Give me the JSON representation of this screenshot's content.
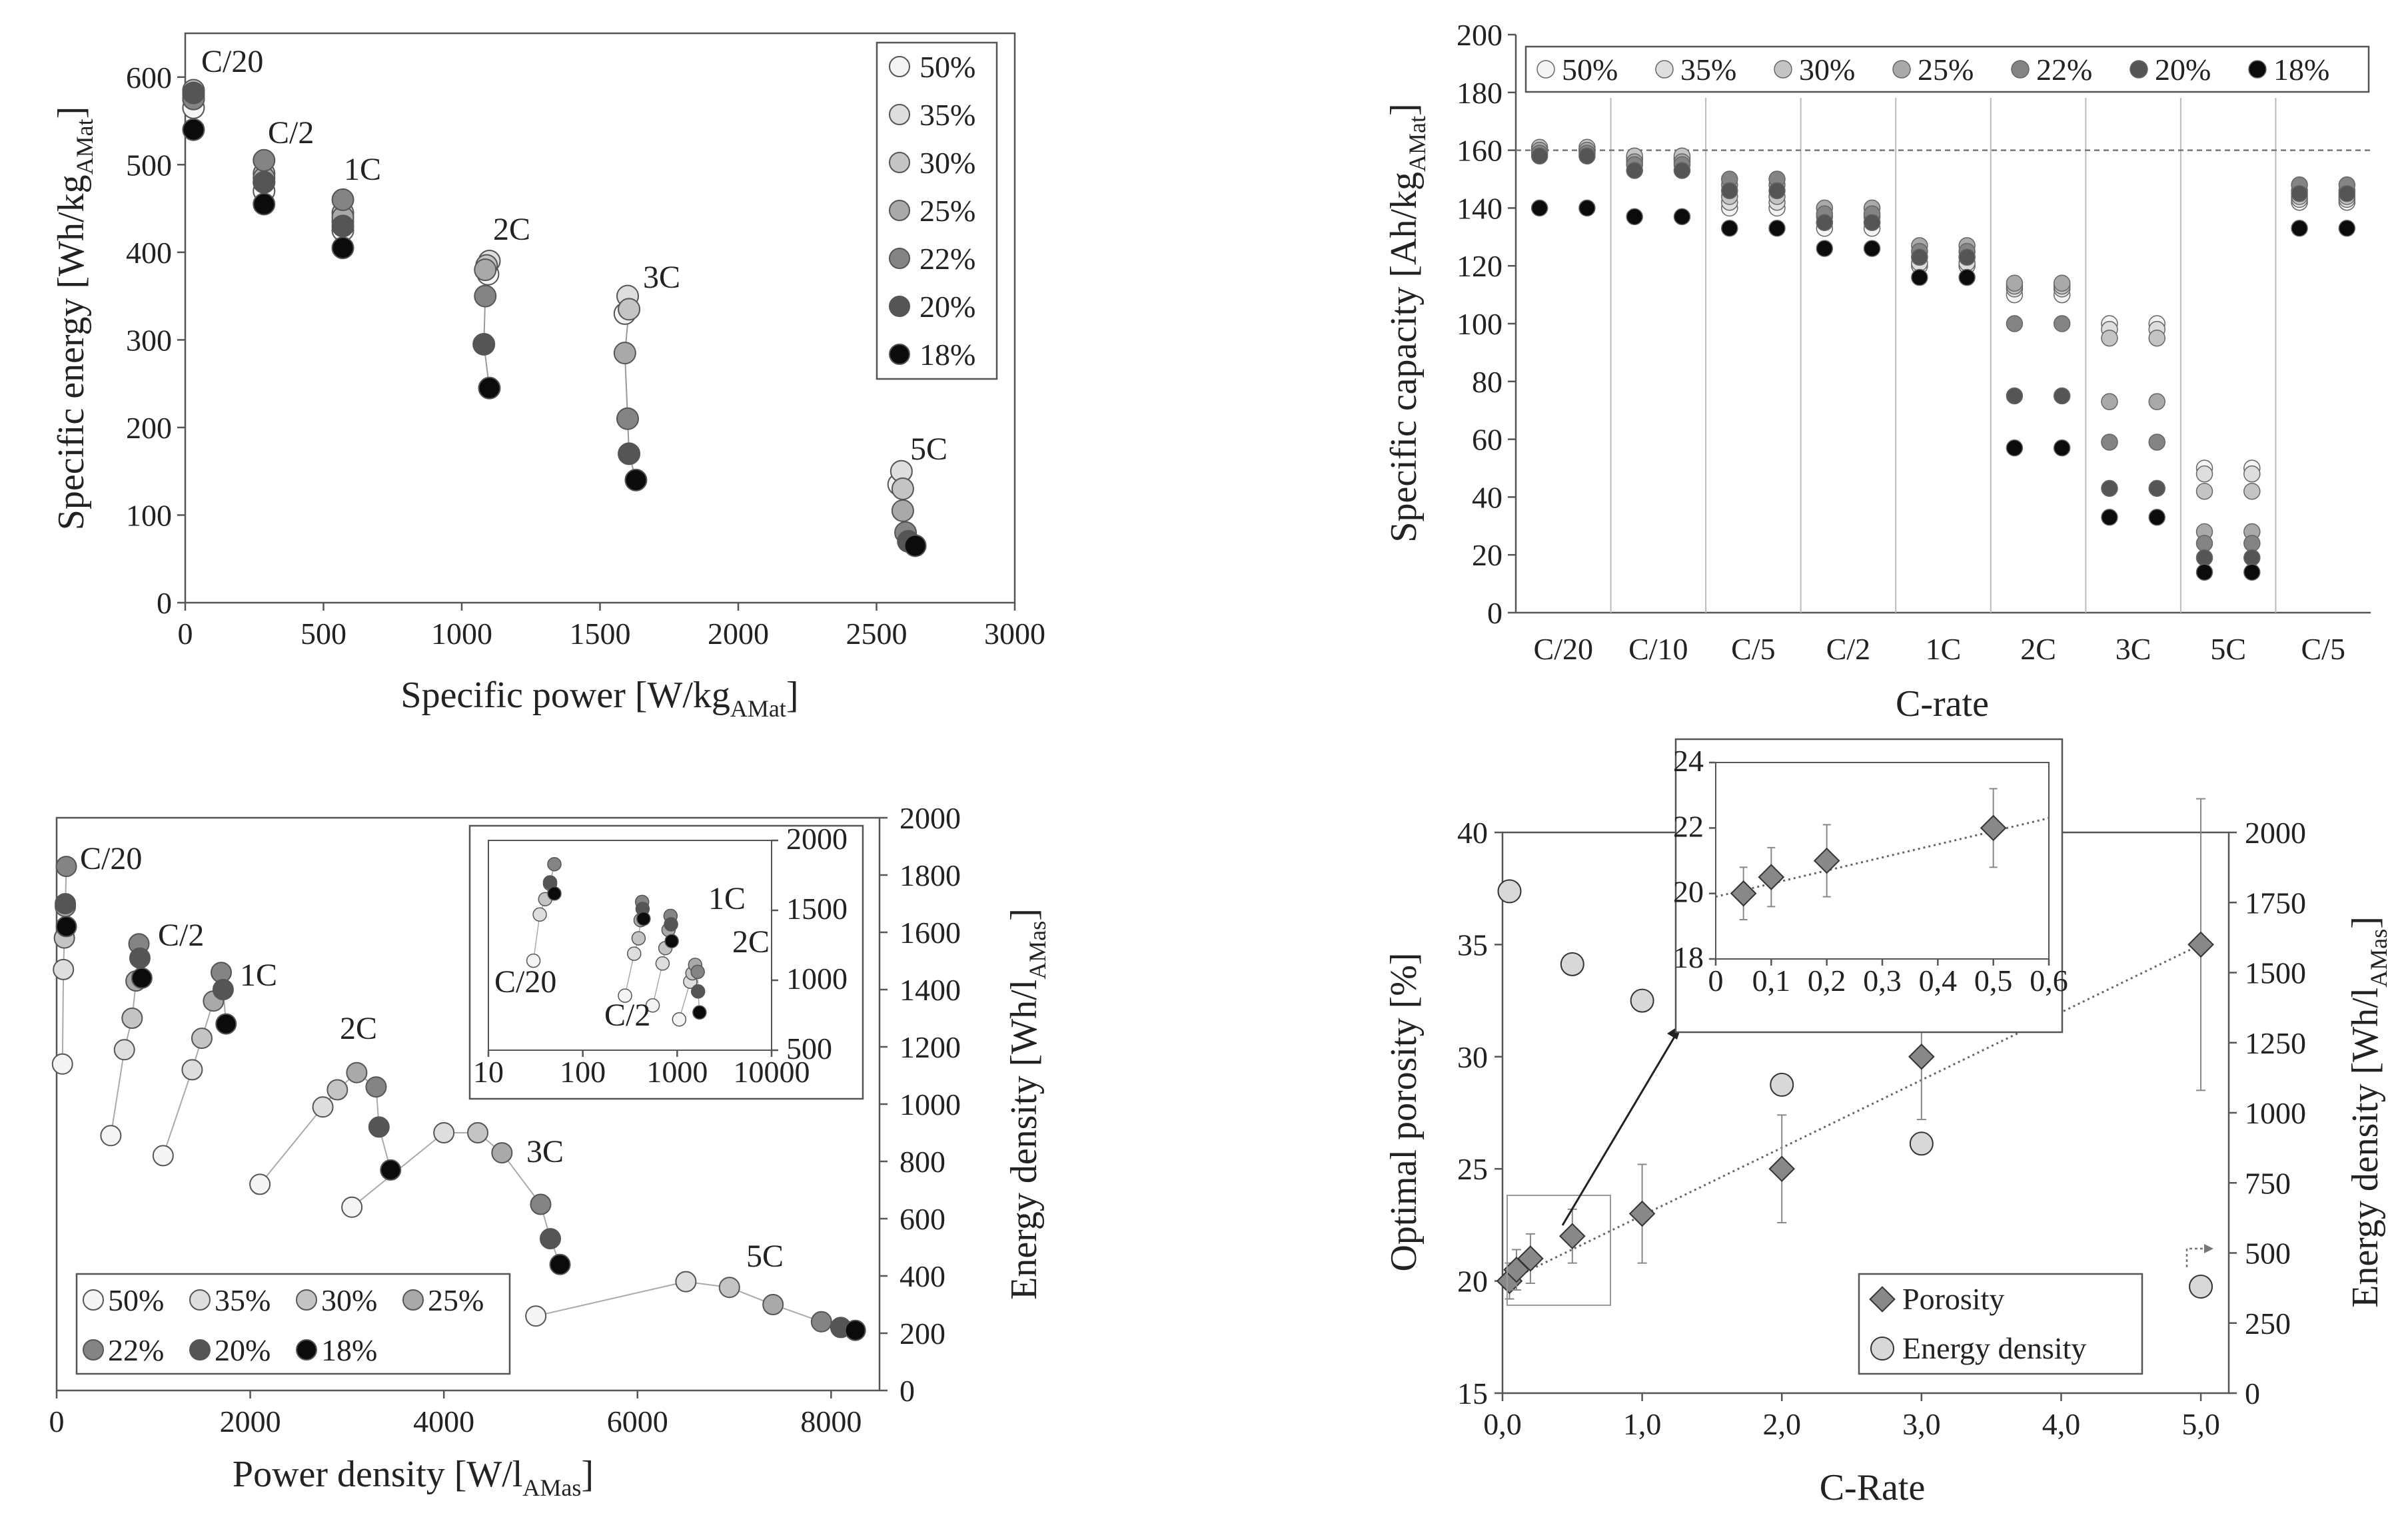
{
  "colors": {
    "s50": "#f4f4f4",
    "s35": "#dedede",
    "s30": "#c4c4c4",
    "s25": "#a9a9a9",
    "s22": "#848484",
    "s20": "#555555",
    "s18": "#0b0b0b",
    "axis": "#555555"
  },
  "chart_data": [
    {
      "type": "scatter",
      "panel": "top-left",
      "title": "",
      "xlabel": "Specific power [W/kg",
      "xlabel_sub": "AMat",
      "xlabel_end": "]",
      "ylabel": "Specific energy [Wh/kg",
      "ylabel_sub": "AMat",
      "ylabel_end": "]",
      "xlim": [
        0,
        3000
      ],
      "ylim": [
        0,
        650
      ],
      "xticks": [
        "0",
        "500",
        "1000",
        "1500",
        "2000",
        "2500",
        "3000"
      ],
      "yticks": [
        "0",
        "100",
        "200",
        "300",
        "400",
        "500",
        "600"
      ],
      "legend": [
        "50%",
        "35%",
        "30%",
        "25%",
        "22%",
        "20%",
        "18%"
      ],
      "legend_position": "top-right",
      "annotations": [
        "C/20",
        "C/2",
        "1C",
        "2C",
        "3C",
        "5C"
      ],
      "series": [
        {
          "name": "50%",
          "x": [
            30,
            285,
            570,
            1095,
            1590,
            2580
          ],
          "y": [
            565,
            470,
            425,
            375,
            330,
            135
          ]
        },
        {
          "name": "35%",
          "x": [
            30,
            285,
            570,
            1100,
            1600,
            2590
          ],
          "y": [
            575,
            480,
            435,
            390,
            350,
            150
          ]
        },
        {
          "name": "30%",
          "x": [
            30,
            285,
            570,
            1090,
            1605,
            2595
          ],
          "y": [
            585,
            490,
            445,
            385,
            335,
            130
          ]
        },
        {
          "name": "25%",
          "x": [
            30,
            285,
            570,
            1085,
            1590,
            2595
          ],
          "y": [
            580,
            485,
            440,
            380,
            285,
            105
          ]
        },
        {
          "name": "22%",
          "x": [
            30,
            285,
            570,
            1085,
            1600,
            2605
          ],
          "y": [
            575,
            505,
            460,
            350,
            210,
            80
          ]
        },
        {
          "name": "20%",
          "x": [
            30,
            285,
            570,
            1080,
            1605,
            2615
          ],
          "y": [
            582,
            480,
            430,
            295,
            170,
            70
          ]
        },
        {
          "name": "18%",
          "x": [
            30,
            285,
            570,
            1100,
            1630,
            2640
          ],
          "y": [
            540,
            455,
            405,
            245,
            140,
            65
          ]
        }
      ]
    },
    {
      "type": "scatter",
      "panel": "top-right",
      "title": "",
      "xlabel": "C-rate",
      "ylabel": "Specific capacity [Ah/kg",
      "ylabel_sub": "AMat",
      "ylabel_end": "]",
      "categories": [
        "C/20",
        "C/10",
        "C/5",
        "C/2",
        "1C",
        "2C",
        "3C",
        "5C",
        "C/5"
      ],
      "ylim": [
        0,
        200
      ],
      "yticks": [
        "0",
        "20",
        "40",
        "60",
        "80",
        "100",
        "120",
        "140",
        "160",
        "180",
        "200"
      ],
      "reference_line": 160,
      "legend": [
        "50%",
        "35%",
        "30%",
        "25%",
        "22%",
        "20%",
        "18%"
      ],
      "legend_position": "top",
      "series": [
        {
          "name": "50%",
          "values": [
            160,
            157,
            140,
            133,
            120,
            110,
            100,
            50,
            142
          ]
        },
        {
          "name": "35%",
          "values": [
            160,
            157,
            142,
            135,
            121,
            112,
            98,
            48,
            143
          ]
        },
        {
          "name": "30%",
          "values": [
            161,
            158,
            144,
            137,
            123,
            113,
            95,
            42,
            144
          ]
        },
        {
          "name": "25%",
          "values": [
            160,
            156,
            148,
            140,
            127,
            114,
            73,
            28,
            146
          ]
        },
        {
          "name": "22%",
          "values": [
            159,
            155,
            150,
            138,
            125,
            100,
            59,
            24,
            148
          ]
        },
        {
          "name": "20%",
          "values": [
            158,
            153,
            146,
            135,
            123,
            75,
            43,
            19,
            145
          ]
        },
        {
          "name": "18%",
          "values": [
            140,
            137,
            133,
            126,
            116,
            57,
            33,
            14,
            133
          ]
        }
      ]
    },
    {
      "type": "scatter",
      "panel": "bottom-left",
      "title": "",
      "xlabel": "Power density [W/l",
      "xlabel_sub": "AMas",
      "xlabel_end": "]",
      "ylabel": "Energy density [Wh/l",
      "ylabel_sub": "AMas",
      "ylabel_end": "]",
      "xlim": [
        0,
        8500
      ],
      "ylim": [
        0,
        2000
      ],
      "xticks": [
        "0",
        "2000",
        "4000",
        "6000",
        "8000"
      ],
      "yticks": [
        "0",
        "200",
        "400",
        "600",
        "800",
        "1000",
        "1200",
        "1400",
        "1600",
        "1800",
        "2000"
      ],
      "legend": [
        "50%",
        "35%",
        "30%",
        "25%",
        "22%",
        "20%",
        "18%"
      ],
      "legend_position": "bottom-left",
      "annotations": [
        "C/20",
        "C/2",
        "1C",
        "2C",
        "3C",
        "5C"
      ],
      "series": [
        {
          "name": "50%",
          "x": [
            60,
            560,
            1100,
            2100,
            3050,
            4950
          ],
          "y": [
            1140,
            890,
            820,
            720,
            640,
            260
          ]
        },
        {
          "name": "35%",
          "x": [
            70,
            700,
            1400,
            2750,
            4000,
            6500
          ],
          "y": [
            1470,
            1190,
            1120,
            990,
            900,
            380
          ]
        },
        {
          "name": "30%",
          "x": [
            80,
            780,
            1500,
            2900,
            4350,
            6950
          ],
          "y": [
            1580,
            1300,
            1230,
            1050,
            900,
            360
          ]
        },
        {
          "name": "25%",
          "x": [
            90,
            820,
            1620,
            3100,
            4600,
            7400
          ],
          "y": [
            1690,
            1430,
            1360,
            1110,
            830,
            300
          ]
        },
        {
          "name": "22%",
          "x": [
            100,
            850,
            1700,
            3300,
            5000,
            7900
          ],
          "y": [
            1830,
            1560,
            1460,
            1060,
            650,
            240
          ]
        },
        {
          "name": "20%",
          "x": [
            90,
            860,
            1720,
            3330,
            5100,
            8100
          ],
          "y": [
            1700,
            1510,
            1400,
            920,
            530,
            220
          ]
        },
        {
          "name": "18%",
          "x": [
            100,
            880,
            1750,
            3450,
            5200,
            8250
          ],
          "y": [
            1620,
            1440,
            1280,
            770,
            440,
            210
          ]
        }
      ],
      "inset": {
        "xscale": "log",
        "xlim": [
          10,
          10000
        ],
        "ylim": [
          500,
          2000
        ],
        "xticks": [
          "10",
          "100",
          "1000",
          "10000"
        ],
        "yticks": [
          "500",
          "1000",
          "1500",
          "2000"
        ],
        "annotations": [
          "C/20",
          "C/2",
          "1C",
          "2C"
        ]
      }
    },
    {
      "type": "scatter",
      "panel": "bottom-right",
      "title": "",
      "xlabel": "C-Rate",
      "ylabel": "Optimal porosity [%]",
      "ylabel2": "Energy density [Wh/l",
      "ylabel2_sub": "AMas",
      "ylabel2_end": "]",
      "xlim": [
        0,
        5.2
      ],
      "ylim": [
        15,
        40
      ],
      "y2lim": [
        0,
        2000
      ],
      "xticks": [
        "0,0",
        "1,0",
        "2,0",
        "3,0",
        "4,0",
        "5,0"
      ],
      "yticks": [
        "15",
        "20",
        "25",
        "30",
        "35",
        "40"
      ],
      "y2ticks": [
        "0",
        "250",
        "500",
        "750",
        "1000",
        "1250",
        "1500",
        "1750",
        "2000"
      ],
      "legend": [
        "Porosity",
        "Energy density"
      ],
      "legend_position": "bottom-right",
      "series": [
        {
          "name": "Porosity",
          "x": [
            0.05,
            0.1,
            0.2,
            0.5,
            1.0,
            2.0,
            3.0,
            5.0
          ],
          "y": [
            20,
            20.5,
            21,
            22,
            23,
            25,
            30,
            35
          ],
          "err": [
            0.8,
            0.9,
            1.1,
            1.2,
            2.2,
            2.4,
            2.8,
            6.5
          ]
        },
        {
          "name": "Energy density",
          "x": [
            0.05,
            0.5,
            1.0,
            2.0,
            3.0,
            5.0
          ],
          "y": [
            1790,
            1530,
            1400,
            1100,
            890,
            380
          ]
        }
      ],
      "trend": {
        "x": [
          0,
          5.0
        ],
        "y": [
          19.9,
          35
        ]
      },
      "inset": {
        "xlim": [
          0,
          0.6
        ],
        "ylim": [
          18,
          24
        ],
        "xticks": [
          "0",
          "0,1",
          "0,2",
          "0,3",
          "0,4",
          "0,5",
          "0,6"
        ],
        "yticks": [
          "18",
          "20",
          "22",
          "24"
        ],
        "points": {
          "x": [
            0.05,
            0.1,
            0.2,
            0.5
          ],
          "y": [
            20,
            20.5,
            21,
            22
          ],
          "err": [
            0.8,
            0.9,
            1.1,
            1.2
          ]
        }
      }
    }
  ]
}
